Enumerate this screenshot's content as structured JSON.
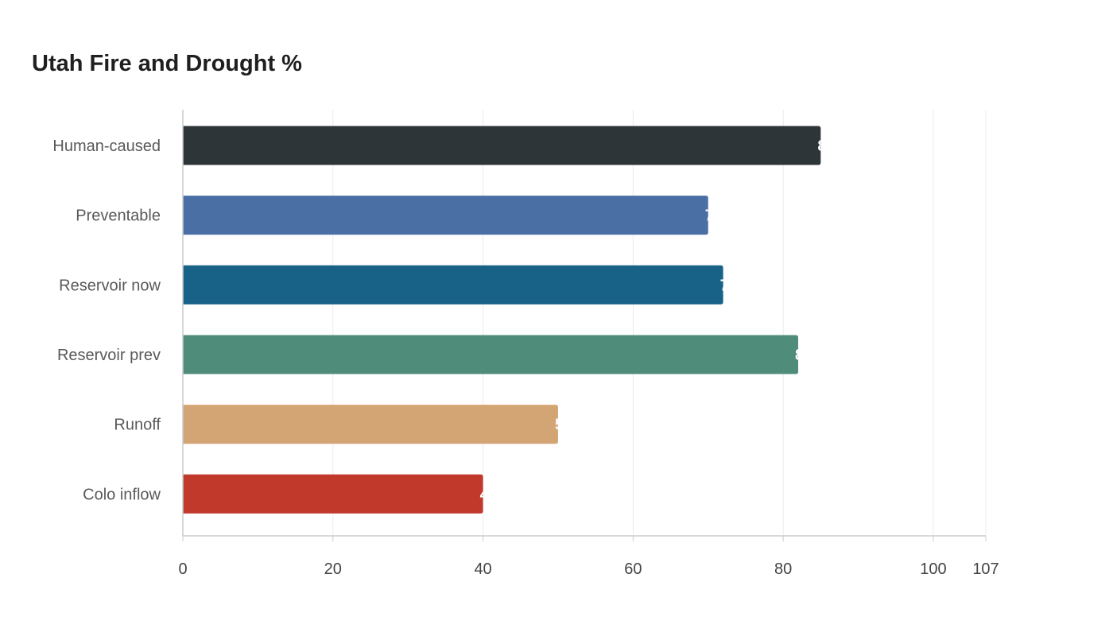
{
  "chart_data": {
    "type": "bar",
    "orientation": "horizontal",
    "title": "Utah Fire and Drought %",
    "xlabel": "",
    "ylabel": "",
    "categories": [
      "Human-caused",
      "Preventable",
      "Reservoir now",
      "Reservoir prev",
      "Runoff",
      "Colo inflow"
    ],
    "values": [
      85,
      70,
      72,
      82,
      50,
      40
    ],
    "colors": [
      "#2e3538",
      "#4a6fa5",
      "#196287",
      "#4f8c7a",
      "#d4a574",
      "#c0392b"
    ],
    "xlim": [
      0,
      107
    ],
    "xticks": [
      0,
      20,
      40,
      60,
      80,
      100,
      107
    ],
    "grid": true,
    "legend": "none",
    "value_labels": true
  }
}
